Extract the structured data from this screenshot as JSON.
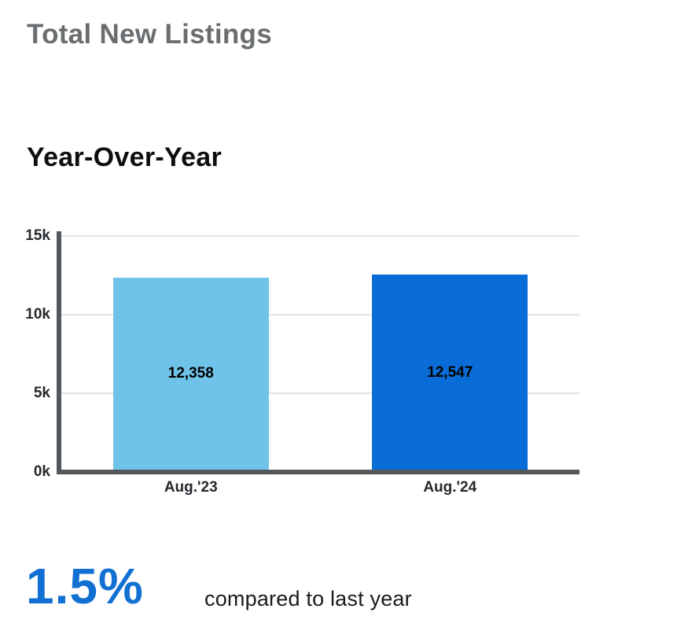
{
  "page": {
    "title": "Total New Listings",
    "subtitle": "Year-Over-Year"
  },
  "chart_data": {
    "type": "bar",
    "title": "Year-Over-Year",
    "categories": [
      "Aug.'23",
      "Aug.'24"
    ],
    "values": [
      12358,
      12547
    ],
    "value_labels": [
      "12,358",
      "12,547"
    ],
    "bar_colors": [
      "#70c3e8",
      "#0a6cd6"
    ],
    "xlabel": "",
    "ylabel": "",
    "ylim": [
      0,
      15000
    ],
    "yticks": [
      0,
      5000,
      10000,
      15000
    ],
    "ytick_labels": [
      "0k",
      "5k",
      "10k",
      "15k"
    ],
    "grid": true,
    "legend": false
  },
  "footer": {
    "percent": "1.5%",
    "comparison_text": "compared to last year"
  },
  "colors": {
    "widget_title_gray": "#6a6e71",
    "chart_title_black": "#0d0d0d",
    "axis_dark_gray": "#54585c",
    "gridline_gray": "#e2e2e2",
    "bar_light_blue": "#70c3e8",
    "bar_dark_blue": "#0a6cd6",
    "percent_blue": "#1270d3",
    "tick_label_dark": "#24282c"
  }
}
